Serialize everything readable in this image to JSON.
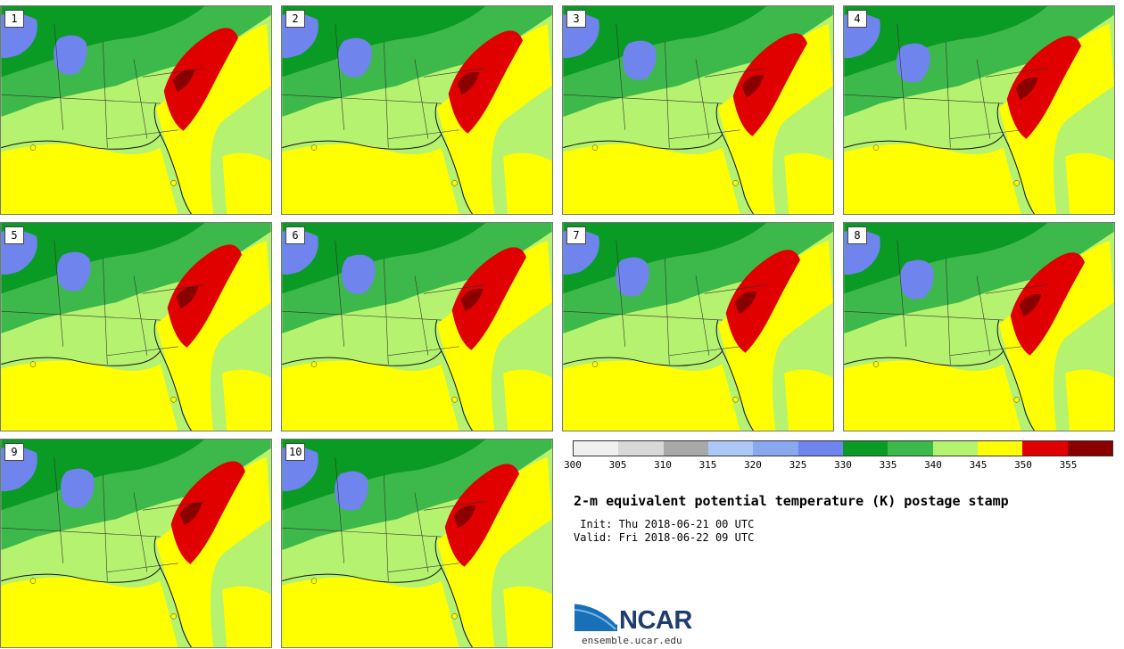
{
  "title": "2-m equivalent potential temperature (K) postage stamp",
  "init_line": " Init: Thu 2018-06-21 00 UTC",
  "valid_line": "Valid: Fri 2018-06-22 09 UTC",
  "panels": [
    {
      "label": "1"
    },
    {
      "label": "2"
    },
    {
      "label": "3"
    },
    {
      "label": "4"
    },
    {
      "label": "5"
    },
    {
      "label": "6"
    },
    {
      "label": "7"
    },
    {
      "label": "8"
    },
    {
      "label": "9"
    },
    {
      "label": "10"
    }
  ],
  "colorbar": {
    "colors": [
      "#f0f0f0",
      "#d8d8d8",
      "#a9a9a9",
      "#aec8f5",
      "#8aa7f0",
      "#6f84ec",
      "#0a9b24",
      "#3cb94a",
      "#b5f26f",
      "#ffff00",
      "#e00000",
      "#8a0000"
    ],
    "ticks": [
      "300",
      "305",
      "310",
      "315",
      "320",
      "325",
      "330",
      "335",
      "340",
      "345",
      "350",
      "355"
    ]
  },
  "logo": {
    "wordmark": "NCAR",
    "url": "ensemble.ucar.edu"
  }
}
